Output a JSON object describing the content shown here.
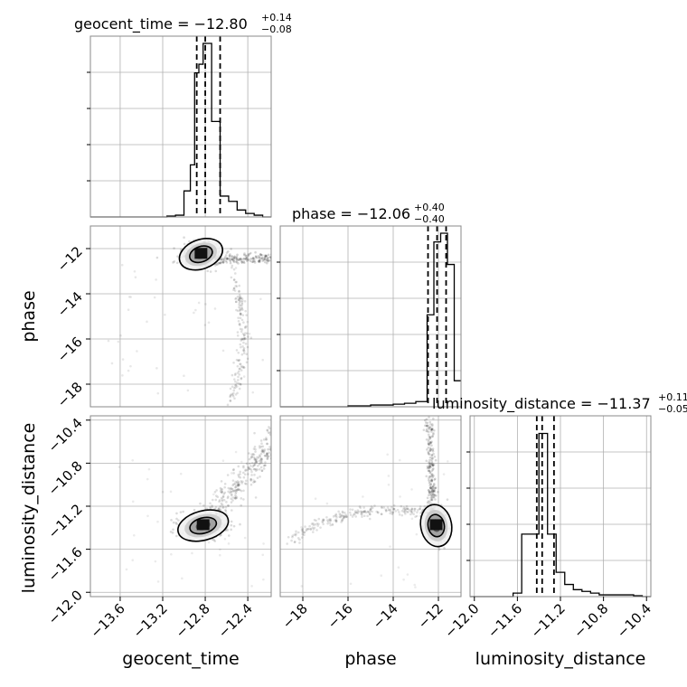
{
  "chart_data": {
    "type": "corner",
    "grid": true,
    "parameters": [
      {
        "name": "geocent_time",
        "median": "−12.80",
        "plus": "+0.14",
        "minus": "−0.08",
        "title_prefix": "geocent_time = ",
        "range": [
          -13.88,
          -12.18
        ],
        "ticks": [
          -13.6,
          -13.2,
          -12.8,
          -12.4
        ],
        "tick_labels": [
          "−13.6",
          "−13.2",
          "−12.8",
          "−12.4"
        ],
        "quantiles": [
          -12.88,
          -12.8,
          -12.66
        ],
        "histogram": {
          "edges": [
            -13.88,
            -13.8,
            -13.72,
            -13.64,
            -13.56,
            -13.48,
            -13.4,
            -13.32,
            -13.24,
            -13.16,
            -13.08,
            -13.0,
            -12.94,
            -12.9,
            -12.86,
            -12.82,
            -12.74,
            -12.66,
            -12.58,
            -12.5,
            -12.42,
            -12.34,
            -12.26,
            -12.18
          ],
          "counts": [
            0,
            0,
            0,
            0,
            0,
            0,
            0,
            0,
            0,
            0.005,
            0.01,
            0.15,
            0.3,
            0.83,
            0.88,
            1.0,
            0.55,
            0.12,
            0.09,
            0.04,
            0.02,
            0.01,
            0.0
          ]
        }
      },
      {
        "name": "phase",
        "median": "−12.06",
        "plus": "+0.40",
        "minus": "−0.40",
        "title_prefix": "phase = ",
        "range": [
          -19.0,
          -11.0
        ],
        "ticks": [
          -18,
          -16,
          -14,
          -12
        ],
        "tick_labels": [
          "−18",
          "−16",
          "−14",
          "−12"
        ],
        "quantiles": [
          -12.46,
          -12.06,
          -11.66
        ],
        "histogram": {
          "edges": [
            -19.0,
            -18.5,
            -18.0,
            -17.5,
            -17.0,
            -16.5,
            -16.0,
            -15.5,
            -15.0,
            -14.5,
            -14.0,
            -13.5,
            -13.0,
            -12.5,
            -12.2,
            -11.9,
            -11.6,
            -11.3,
            -11.0
          ],
          "counts": [
            0,
            0,
            0,
            0,
            0,
            0,
            0.005,
            0.005,
            0.01,
            0.01,
            0.015,
            0.02,
            0.03,
            0.53,
            0.95,
            1.0,
            0.82,
            0.15
          ]
        }
      },
      {
        "name": "luminosity_distance",
        "median": "−11.37",
        "plus": "+0.11",
        "minus": "−0.05",
        "title_prefix": "luminosity_distance = ",
        "range": [
          -12.04,
          -10.36
        ],
        "ticks": [
          -12.0,
          -11.6,
          -11.2,
          -10.8,
          -10.4
        ],
        "tick_labels": [
          "−12.0",
          "−11.6",
          "−11.2",
          "−10.8",
          "−10.4"
        ],
        "quantiles": [
          -11.42,
          -11.37,
          -11.26
        ],
        "histogram": {
          "edges": [
            -12.04,
            -11.96,
            -11.88,
            -11.8,
            -11.72,
            -11.64,
            -11.56,
            -11.48,
            -11.4,
            -11.32,
            -11.24,
            -11.16,
            -11.08,
            -11.0,
            -10.92,
            -10.84,
            -10.76,
            -10.68,
            -10.6,
            -10.52,
            -10.44,
            -10.36
          ],
          "counts": [
            0,
            0,
            0,
            0,
            0,
            0.02,
            0.36,
            0.36,
            0.94,
            0.36,
            0.14,
            0.07,
            0.04,
            0.03,
            0.02,
            0.01,
            0.01,
            0.01,
            0.01,
            0.005,
            0.0
          ]
        }
      }
    ],
    "scatter": {
      "geocent_time-phase": {
        "mode_x": -12.84,
        "mode_y": -12.2
      },
      "geocent_time-luminosity_distance": {
        "mode_x": -12.82,
        "mode_y": -11.38
      },
      "phase-luminosity_distance": {
        "mode_x": -12.1,
        "mode_y": -11.38
      }
    }
  }
}
